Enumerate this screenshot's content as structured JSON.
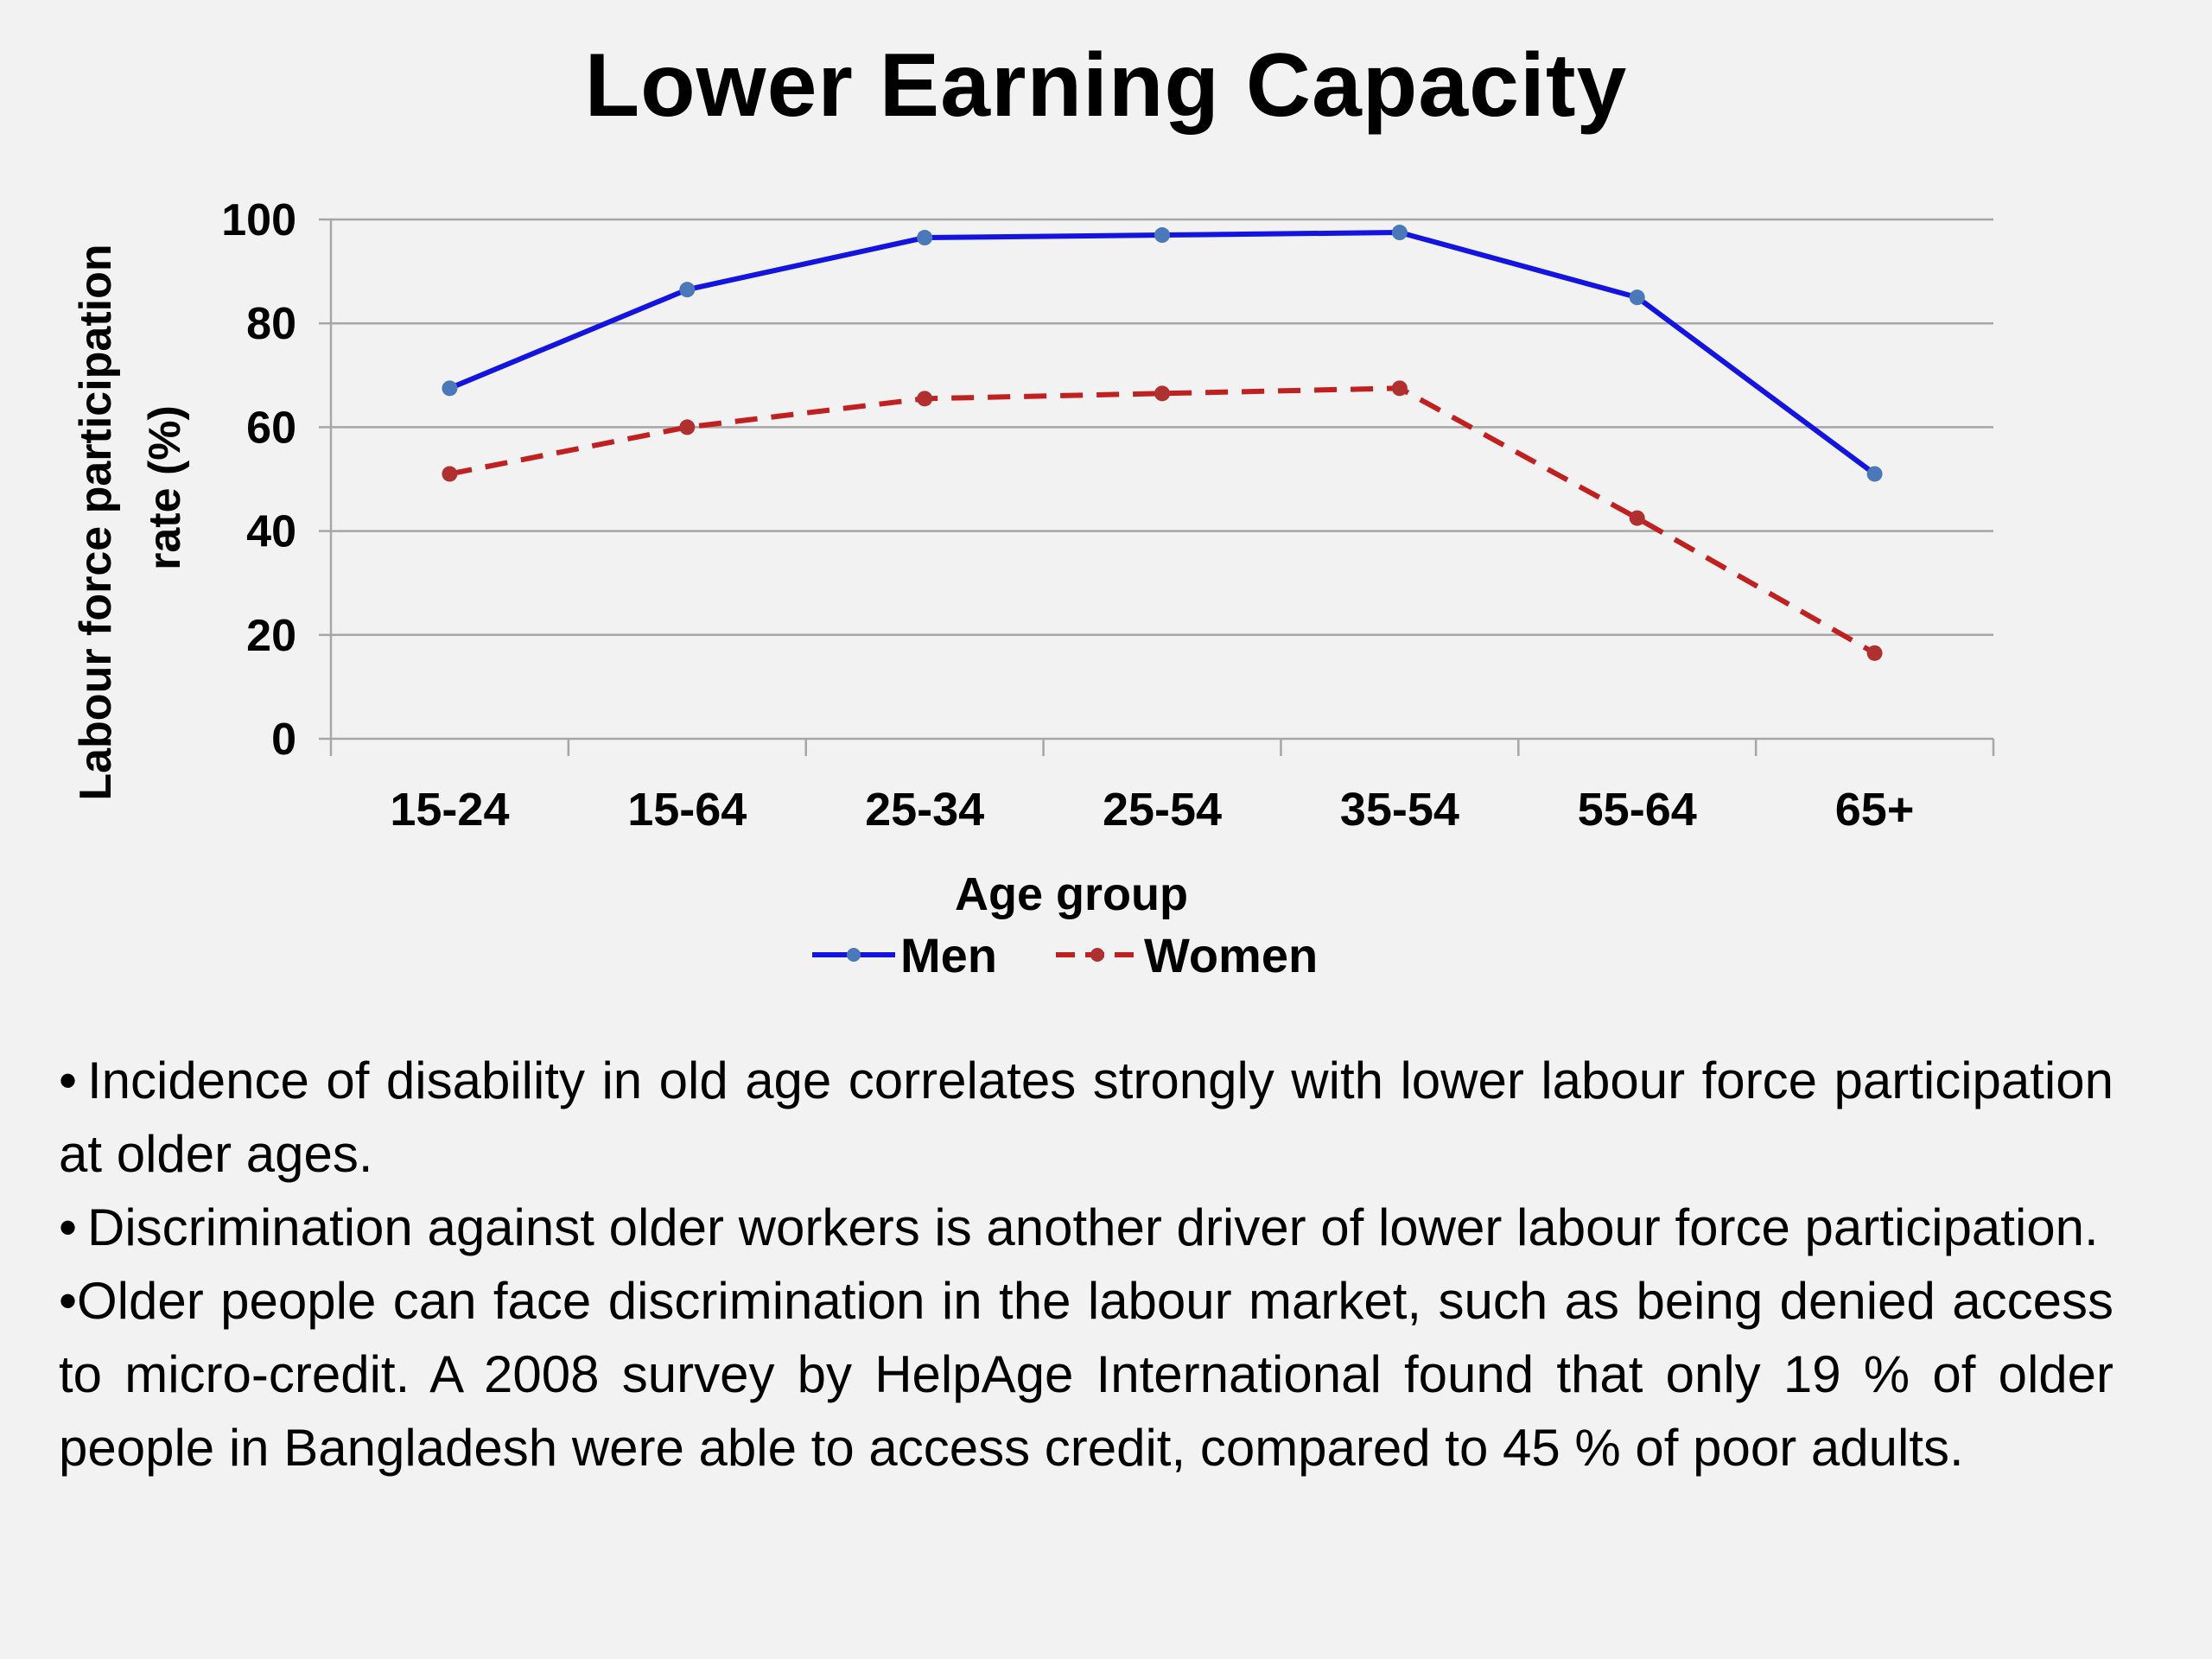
{
  "slide": {
    "title": "Lower Earning Capacity",
    "bullets": [
      "Incidence of disability in old age correlates strongly with lower labour force participation at older ages.",
      "Discrimination against older workers is another driver of lower labour force participation.",
      "Older people can face discrimination in the labour market, such as being denied access to micro-credit. A 2008 survey by HelpAge International found that only 19 % of older people in Bangladesh were able to access credit, compared to 45 % of poor adults."
    ]
  },
  "chart_data": {
    "type": "line",
    "title": "",
    "xlabel": "Age group",
    "ylabel": "Labour force participation rate (%)",
    "categories": [
      "15-24",
      "15-64",
      "25-34",
      "25-54",
      "35-54",
      "55-64",
      "65+"
    ],
    "ylim": [
      0,
      100
    ],
    "yticks": [
      0,
      20,
      40,
      60,
      80,
      100
    ],
    "grid": true,
    "legend": "bottom",
    "series": [
      {
        "name": "Men",
        "values": [
          67.5,
          86.5,
          96.5,
          97,
          97.5,
          85,
          51
        ],
        "color": "#1414e0",
        "style": "solid"
      },
      {
        "name": "Women",
        "values": [
          51,
          60,
          65.5,
          66.5,
          67.5,
          42.5,
          16.5
        ],
        "color": "#c0201f",
        "style": "dashed"
      }
    ]
  }
}
